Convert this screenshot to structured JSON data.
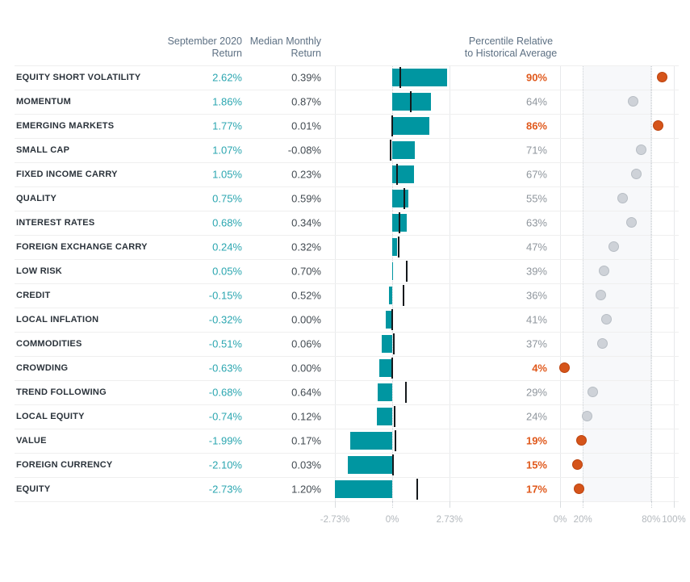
{
  "headers": {
    "september_return": "September 2020\nReturn",
    "median_monthly_return": "Median Monthly\nReturn",
    "percentile": "Percentile Relative\nto Historical Average"
  },
  "colors": {
    "teal_bar": "#0096a1",
    "teal_value_text": "#2ba6b0",
    "orange_text": "#e0591c",
    "orange_dot_fill": "#d5541a",
    "gray_dot_fill": "#ced2d8",
    "gray_percentile_text": "#8f969d",
    "header_text": "#5d7083",
    "factor_label_text": "#2a323a",
    "median_value_text": "#434b52",
    "axis_label_text": "#b3b8bd"
  },
  "chart_data": {
    "type": "table",
    "columns": [
      "September 2020 Return",
      "Median Monthly Return",
      "Percentile Relative to Historical Average"
    ],
    "bar_axis": {
      "tick_labels": [
        "-2.73%",
        "0%",
        "2.73%"
      ],
      "tick_values": [
        -2.73,
        0,
        2.73
      ],
      "range": [
        -2.73,
        2.73
      ],
      "unit": "%"
    },
    "dot_axis": {
      "tick_labels": [
        "0%",
        "20%",
        "80%",
        "100%"
      ],
      "tick_values": [
        0,
        20,
        80,
        100
      ],
      "range": [
        0,
        100
      ],
      "shaded_band": [
        20,
        80
      ],
      "unit": "%"
    },
    "rows": [
      {
        "factor": "EQUITY SHORT VOLATILITY",
        "september_2020_return": "2.62%",
        "median_monthly_return": "0.39%",
        "percentile": "90%",
        "highlighted": true
      },
      {
        "factor": "MOMENTUM",
        "september_2020_return": "1.86%",
        "median_monthly_return": "0.87%",
        "percentile": "64%",
        "highlighted": false
      },
      {
        "factor": "EMERGING MARKETS",
        "september_2020_return": "1.77%",
        "median_monthly_return": "0.01%",
        "percentile": "86%",
        "highlighted": true
      },
      {
        "factor": "SMALL CAP",
        "september_2020_return": "1.07%",
        "median_monthly_return": "-0.08%",
        "percentile": "71%",
        "highlighted": false
      },
      {
        "factor": "FIXED INCOME CARRY",
        "september_2020_return": "1.05%",
        "median_monthly_return": "0.23%",
        "percentile": "67%",
        "highlighted": false
      },
      {
        "factor": "QUALITY",
        "september_2020_return": "0.75%",
        "median_monthly_return": "0.59%",
        "percentile": "55%",
        "highlighted": false
      },
      {
        "factor": "INTEREST RATES",
        "september_2020_return": "0.68%",
        "median_monthly_return": "0.34%",
        "percentile": "63%",
        "highlighted": false
      },
      {
        "factor": "FOREIGN EXCHANGE CARRY",
        "september_2020_return": "0.24%",
        "median_monthly_return": "0.32%",
        "percentile": "47%",
        "highlighted": false
      },
      {
        "factor": "LOW RISK",
        "september_2020_return": "0.05%",
        "median_monthly_return": "0.70%",
        "percentile": "39%",
        "highlighted": false
      },
      {
        "factor": "CREDIT",
        "september_2020_return": "-0.15%",
        "median_monthly_return": "0.52%",
        "percentile": "36%",
        "highlighted": false
      },
      {
        "factor": "LOCAL INFLATION",
        "september_2020_return": "-0.32%",
        "median_monthly_return": "0.00%",
        "percentile": "41%",
        "highlighted": false
      },
      {
        "factor": "COMMODITIES",
        "september_2020_return": "-0.51%",
        "median_monthly_return": "0.06%",
        "percentile": "37%",
        "highlighted": false
      },
      {
        "factor": "CROWDING",
        "september_2020_return": "-0.63%",
        "median_monthly_return": "0.00%",
        "percentile": "4%",
        "highlighted": true
      },
      {
        "factor": "TREND FOLLOWING",
        "september_2020_return": "-0.68%",
        "median_monthly_return": "0.64%",
        "percentile": "29%",
        "highlighted": false
      },
      {
        "factor": "LOCAL EQUITY",
        "september_2020_return": "-0.74%",
        "median_monthly_return": "0.12%",
        "percentile": "24%",
        "highlighted": false
      },
      {
        "factor": "VALUE",
        "september_2020_return": "-1.99%",
        "median_monthly_return": "0.17%",
        "percentile": "19%",
        "highlighted": true
      },
      {
        "factor": "FOREIGN CURRENCY",
        "september_2020_return": "-2.10%",
        "median_monthly_return": "0.03%",
        "percentile": "15%",
        "highlighted": true
      },
      {
        "factor": "EQUITY",
        "september_2020_return": "-2.73%",
        "median_monthly_return": "1.20%",
        "percentile": "17%",
        "highlighted": true
      }
    ]
  }
}
